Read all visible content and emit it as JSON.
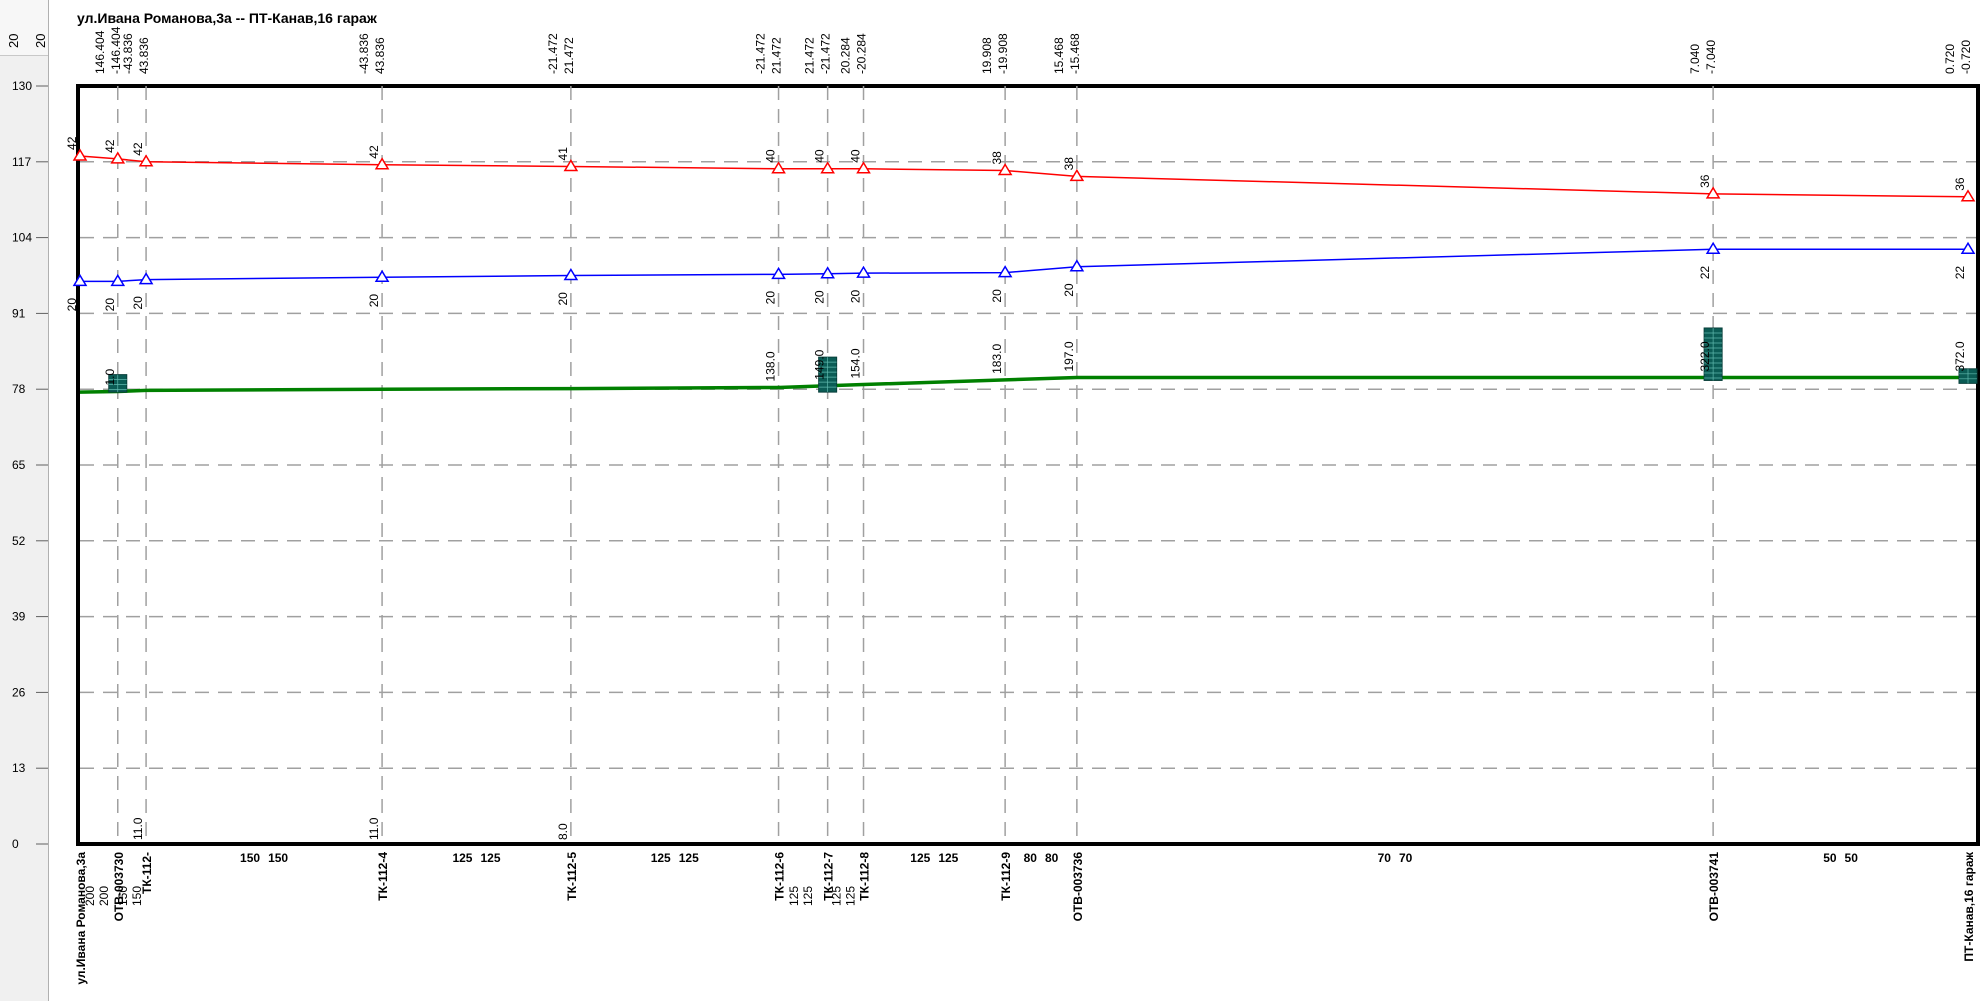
{
  "ruler": {
    "top_label_a": "20",
    "top_label_b": "20"
  },
  "chart_data": {
    "type": "line",
    "title": "ул.Ивана Романова,3а -- ПТ-Канав,16 гараж",
    "xlabel": "",
    "ylabel": "",
    "ylim": [
      0,
      130
    ],
    "yticks": [
      0,
      13,
      26,
      39,
      52,
      65,
      78,
      91,
      104,
      117,
      130
    ],
    "grid": true,
    "colors": {
      "supply": "#ff0000",
      "return": "#0000ff",
      "ground": "#008000",
      "dashes": "#a0a0a0",
      "block": "#0b5c55"
    },
    "series": [
      {
        "values": [
          118,
          117.5,
          117,
          116.5,
          116.2,
          115.8,
          115.8,
          115.8,
          115.5,
          114.5,
          111.5,
          111
        ]
      },
      {
        "values": [
          96.5,
          96.5,
          96.8,
          97.2,
          97.5,
          97.7,
          97.8,
          97.9,
          98.0,
          99.0,
          102.0,
          102.0
        ]
      },
      {
        "values": [
          77.5,
          77.6,
          77.8,
          78.0,
          78.1,
          78.3,
          78.6,
          78.8,
          79.6,
          80,
          80,
          80
        ]
      }
    ],
    "nodes": [
      {
        "x": 0,
        "name": "ул.Ивана Романова,3а",
        "supply_label": "42",
        "return_label": "20",
        "top": [
          "",
          ""
        ],
        "ground_label": "",
        "bottom_label": ""
      },
      {
        "x": 200,
        "name": "ОТВ-003730",
        "supply_label": "42",
        "return_label": "20",
        "top": [
          "146.404",
          "-146.404"
        ],
        "ground_label": "1.0",
        "bottom_label": ""
      },
      {
        "x": 350,
        "name": "ТК-112-",
        "supply_label": "42",
        "return_label": "20",
        "top": [
          "-43.836",
          "43.836"
        ],
        "ground_label": "",
        "bottom_label": "11.0"
      },
      {
        "x": 1600,
        "name": "ТК-112-4",
        "supply_label": "42",
        "return_label": "20",
        "top": [
          "-43.836",
          "43.836"
        ],
        "ground_label": "",
        "bottom_label": "11.0"
      },
      {
        "x": 2600,
        "name": "ТК-112-5",
        "supply_label": "41",
        "return_label": "20",
        "top": [
          "-21.472",
          "21.472"
        ],
        "ground_label": "",
        "bottom_label": "8.0"
      },
      {
        "x": 3700,
        "name": "ТК-112-6",
        "supply_label": "40",
        "return_label": "20",
        "top": [
          "-21.472",
          "21.472"
        ],
        "ground_label": "138.0",
        "bottom_label": ""
      },
      {
        "x": 3960,
        "name": "ТК-112-7",
        "supply_label": "40",
        "return_label": "20",
        "top": [
          "21.472",
          "-21.472"
        ],
        "ground_label": "149.0",
        "bottom_label": ""
      },
      {
        "x": 4150,
        "name": "ТК-112-8",
        "supply_label": "40",
        "return_label": "20",
        "top": [
          "20.284",
          "-20.284"
        ],
        "ground_label": "154.0",
        "bottom_label": ""
      },
      {
        "x": 4900,
        "name": "ТК-112-9",
        "supply_label": "38",
        "return_label": "20",
        "top": [
          "19.908",
          "-19.908"
        ],
        "ground_label": "183.0",
        "bottom_label": ""
      },
      {
        "x": 5280,
        "name": "ОТВ-003736",
        "supply_label": "38",
        "return_label": "20",
        "top": [
          "15.468",
          "-15.468"
        ],
        "ground_label": "197.0",
        "bottom_label": ""
      },
      {
        "x": 8650,
        "name": "ОТВ-003741",
        "supply_label": "36",
        "return_label": "22",
        "top": [
          "7.040",
          "-7.040"
        ],
        "ground_label": "322.0",
        "bottom_label": ""
      },
      {
        "x": 10000,
        "name": "ПТ-Канав,16 гараж",
        "supply_label": "36",
        "return_label": "22",
        "top": [
          "0.720",
          "-0.720"
        ],
        "ground_label": "372.0",
        "bottom_label": ""
      }
    ],
    "segments": [
      {
        "a": "200",
        "b": "200"
      },
      {
        "a": "150",
        "b": "150"
      },
      {
        "a": "150",
        "b": "150"
      },
      {
        "a": "125",
        "b": "125"
      },
      {
        "a": "125",
        "b": "125"
      },
      {
        "a": "125",
        "b": "125"
      },
      {
        "a": "125",
        "b": "125"
      },
      {
        "a": "125",
        "b": "125"
      },
      {
        "a": "80",
        "b": "80"
      },
      {
        "a": "70",
        "b": "70"
      },
      {
        "a": "50",
        "b": "50"
      }
    ],
    "blocks": [
      {
        "x": 200,
        "y_from": 77.5,
        "y_to": 80.5
      },
      {
        "x": 3960,
        "y_from": 77.5,
        "y_to": 83.5
      },
      {
        "x": 8650,
        "y_from": 79.5,
        "y_to": 88.5
      },
      {
        "x": 10000,
        "y_from": 79.0,
        "y_to": 81.5
      }
    ]
  }
}
